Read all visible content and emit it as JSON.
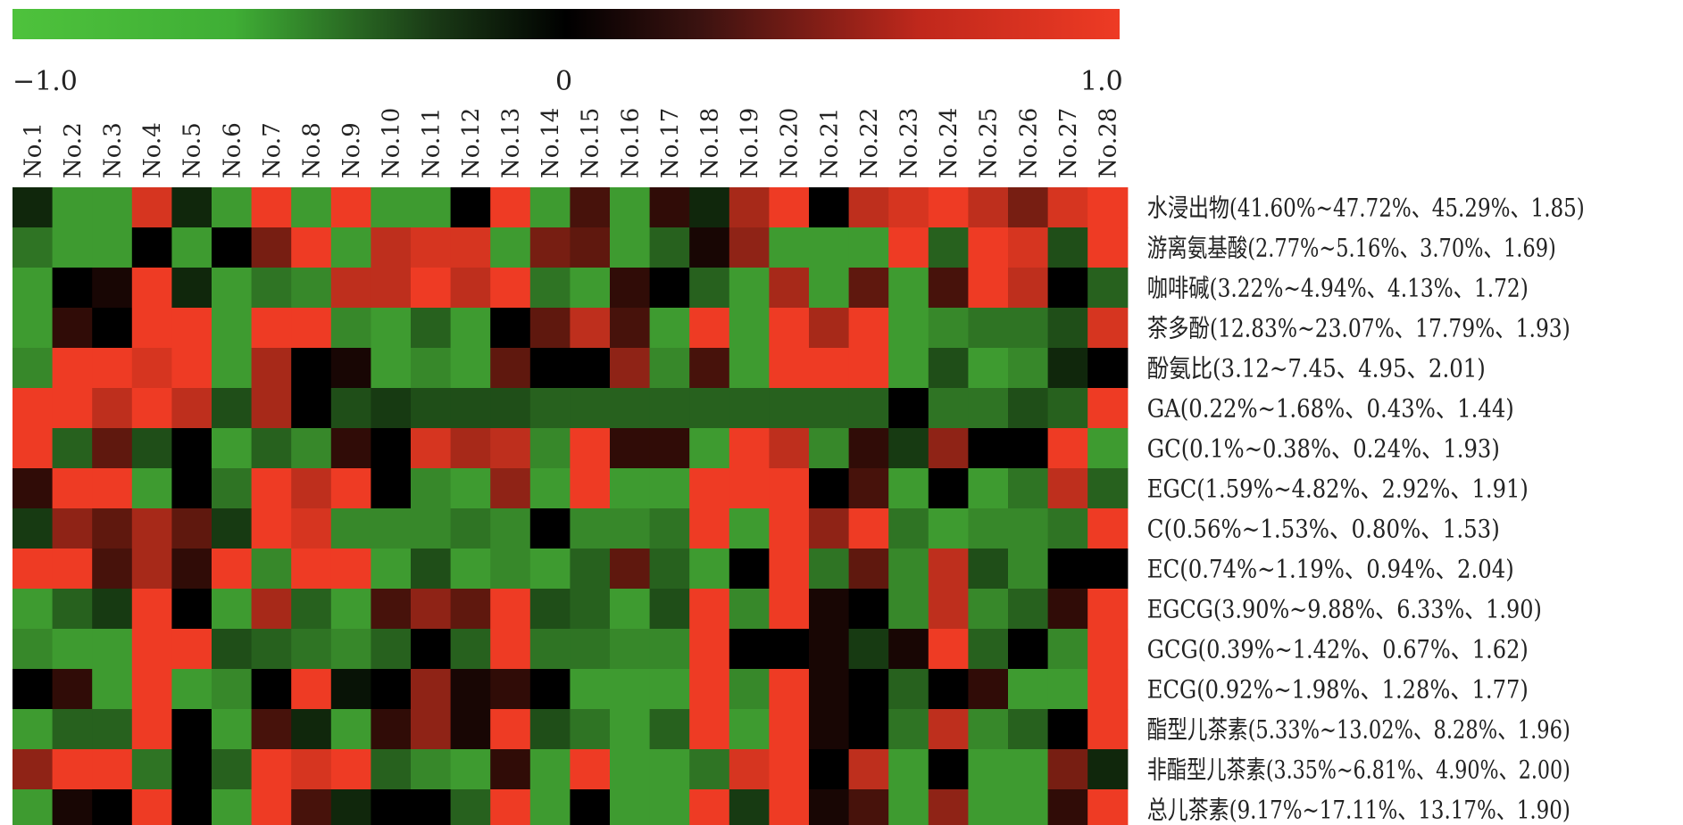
{
  "chart_data": {
    "type": "heatmap",
    "colorbar": {
      "min_label": "−1.0",
      "mid_label": "0",
      "max_label": "1.0",
      "range": [
        -1.0,
        1.0
      ],
      "colors": {
        "low": "#4ec23c",
        "mid": "#000000",
        "high": "#ee3b24"
      }
    },
    "columns": [
      "No.1",
      "No.2",
      "No.3",
      "No.4",
      "No.5",
      "No.6",
      "No.7",
      "No.8",
      "No.9",
      "No.10",
      "No.11",
      "No.12",
      "No.13",
      "No.14",
      "No.15",
      "No.16",
      "No.17",
      "No.18",
      "No.19",
      "No.20",
      "No.21",
      "No.22",
      "No.23",
      "No.24",
      "No.25",
      "No.26",
      "No.27",
      "No.28"
    ],
    "rows": [
      "水浸出物(41.60%~47.72%、45.29%、1.85)",
      "游离氨基酸(2.77%~5.16%、3.70%、1.69)",
      "咖啡碱(3.22%~4.94%、4.13%、1.72)",
      "茶多酚(12.83%~23.07%、17.79%、1.93)",
      "酚氨比(3.12~7.45、4.95、2.01)",
      "GA(0.22%~1.68%、0.43%、1.44)",
      "GC(0.1%~0.38%、0.24%、1.93)",
      "EGC(1.59%~4.82%、2.92%、1.91)",
      "C(0.56%~1.53%、0.80%、1.53)",
      "EC(0.74%~1.19%、0.94%、2.04)",
      "EGCG(3.90%~9.88%、6.33%、1.90)",
      "GCG(0.39%~1.42%、0.67%、1.62)",
      "ECG(0.92%~1.98%、1.28%、1.77)",
      "酯型儿茶素(5.33%~13.02%、8.28%、1.96)",
      "非酯型儿茶素(3.35%~6.81%、4.90%、2.00)",
      "总儿茶素(9.17%~17.11%、13.17%、1.90)"
    ],
    "values": [
      [
        -0.2,
        -0.8,
        -0.8,
        0.9,
        -0.2,
        -0.8,
        1.0,
        -0.8,
        1.0,
        -0.8,
        -0.8,
        0.0,
        1.0,
        -0.8,
        0.3,
        -0.8,
        0.2,
        -0.2,
        0.7,
        1.0,
        0.0,
        0.8,
        0.9,
        1.0,
        0.8,
        0.5,
        0.9,
        1.0
      ],
      [
        -0.6,
        -0.8,
        -0.8,
        0.0,
        -0.8,
        0.0,
        0.5,
        1.0,
        -0.8,
        0.8,
        0.9,
        0.9,
        -0.8,
        0.5,
        0.4,
        -0.8,
        -0.5,
        0.1,
        0.6,
        -0.8,
        -0.8,
        -0.8,
        1.0,
        -0.5,
        1.0,
        0.9,
        -0.4,
        1.0
      ],
      [
        -0.8,
        0.0,
        0.1,
        1.0,
        -0.2,
        -0.8,
        -0.6,
        -0.7,
        0.8,
        0.8,
        1.0,
        0.8,
        1.0,
        -0.6,
        -0.8,
        0.2,
        0.0,
        -0.5,
        -0.8,
        0.7,
        -0.8,
        0.4,
        -0.8,
        0.3,
        1.0,
        0.8,
        0.0,
        -0.5
      ],
      [
        -0.8,
        0.2,
        0.0,
        1.0,
        1.0,
        -0.8,
        1.0,
        1.0,
        -0.7,
        -0.8,
        -0.5,
        -0.8,
        0.0,
        0.4,
        0.8,
        0.3,
        -0.8,
        1.0,
        -0.8,
        1.0,
        0.7,
        1.0,
        -0.8,
        -0.7,
        -0.6,
        -0.6,
        -0.4,
        0.9
      ],
      [
        -0.7,
        1.0,
        1.0,
        0.9,
        1.0,
        -0.8,
        0.7,
        0.0,
        0.1,
        -0.8,
        -0.7,
        -0.8,
        0.4,
        0.0,
        0.0,
        0.6,
        -0.7,
        0.3,
        -0.8,
        1.0,
        1.0,
        1.0,
        -0.8,
        -0.4,
        -0.8,
        -0.7,
        -0.2,
        0.0
      ],
      [
        1.0,
        1.0,
        0.8,
        1.0,
        0.8,
        -0.4,
        0.7,
        0.0,
        -0.4,
        -0.3,
        -0.4,
        -0.4,
        -0.4,
        -0.5,
        -0.5,
        -0.5,
        -0.5,
        -0.5,
        -0.5,
        -0.5,
        -0.5,
        -0.5,
        0.0,
        -0.6,
        -0.6,
        -0.4,
        -0.5,
        1.0
      ],
      [
        1.0,
        -0.5,
        0.4,
        -0.4,
        0.0,
        -0.8,
        -0.5,
        -0.7,
        0.2,
        0.0,
        0.9,
        0.7,
        0.8,
        -0.7,
        1.0,
        0.2,
        0.2,
        -0.8,
        1.0,
        0.8,
        -0.7,
        0.2,
        -0.3,
        0.6,
        0.0,
        0.0,
        1.0,
        -0.8
      ],
      [
        0.2,
        1.0,
        1.0,
        -0.8,
        0.0,
        -0.6,
        1.0,
        0.8,
        1.0,
        0.0,
        -0.7,
        -0.8,
        0.6,
        -0.8,
        1.0,
        -0.8,
        -0.8,
        1.0,
        1.0,
        1.0,
        0.0,
        0.3,
        -0.8,
        0.0,
        -0.8,
        -0.6,
        0.8,
        -0.5
      ],
      [
        -0.3,
        0.6,
        0.4,
        0.7,
        0.4,
        -0.3,
        1.0,
        0.9,
        -0.7,
        -0.7,
        -0.7,
        -0.6,
        -0.7,
        0.0,
        -0.7,
        -0.7,
        -0.6,
        1.0,
        -0.8,
        1.0,
        0.6,
        1.0,
        -0.6,
        -0.8,
        -0.7,
        -0.7,
        -0.6,
        1.0
      ],
      [
        1.0,
        1.0,
        0.3,
        0.7,
        0.2,
        1.0,
        -0.7,
        1.0,
        1.0,
        -0.8,
        -0.4,
        -0.8,
        -0.7,
        -0.8,
        -0.5,
        0.4,
        -0.5,
        -0.8,
        0.0,
        1.0,
        -0.6,
        0.4,
        -0.7,
        0.8,
        -0.4,
        -0.7,
        0.0,
        0.0
      ],
      [
        -0.8,
        -0.5,
        -0.3,
        1.0,
        0.0,
        -0.8,
        0.7,
        -0.5,
        -0.8,
        0.3,
        0.6,
        0.4,
        1.0,
        -0.4,
        -0.5,
        -0.8,
        -0.4,
        1.0,
        -0.7,
        1.0,
        0.1,
        0.0,
        -0.7,
        0.8,
        -0.7,
        -0.5,
        0.2,
        1.0
      ],
      [
        -0.7,
        -0.8,
        -0.8,
        1.0,
        1.0,
        -0.4,
        -0.5,
        -0.6,
        -0.7,
        -0.5,
        0.0,
        -0.5,
        1.0,
        -0.6,
        -0.6,
        -0.7,
        -0.7,
        1.0,
        0.0,
        0.0,
        0.1,
        -0.3,
        0.1,
        1.0,
        -0.5,
        0.0,
        -0.7,
        1.0
      ],
      [
        0.0,
        0.2,
        -0.8,
        1.0,
        -0.8,
        -0.7,
        0.0,
        1.0,
        -0.1,
        0.0,
        0.6,
        0.1,
        0.2,
        0.0,
        -0.8,
        -0.8,
        -0.8,
        1.0,
        -0.7,
        1.0,
        0.1,
        0.0,
        -0.5,
        0.0,
        0.2,
        -0.8,
        -0.8,
        1.0
      ],
      [
        -0.8,
        -0.5,
        -0.5,
        1.0,
        0.0,
        -0.8,
        0.3,
        -0.2,
        -0.8,
        0.2,
        0.6,
        0.1,
        1.0,
        -0.4,
        -0.6,
        -0.8,
        -0.5,
        1.0,
        -0.8,
        1.0,
        0.1,
        0.0,
        -0.6,
        0.8,
        -0.7,
        -0.5,
        0.0,
        1.0
      ],
      [
        0.6,
        1.0,
        1.0,
        -0.6,
        0.0,
        -0.5,
        1.0,
        0.9,
        1.0,
        -0.5,
        -0.7,
        -0.8,
        0.2,
        -0.8,
        1.0,
        -0.8,
        -0.8,
        -0.6,
        0.9,
        1.0,
        0.0,
        0.8,
        -0.8,
        0.0,
        -0.8,
        -0.8,
        0.5,
        -0.2
      ],
      [
        -0.8,
        0.1,
        0.0,
        1.0,
        0.0,
        -0.8,
        1.0,
        0.3,
        -0.2,
        0.0,
        0.0,
        -0.5,
        1.0,
        -0.8,
        0.0,
        -0.8,
        -0.8,
        1.0,
        -0.3,
        1.0,
        0.1,
        0.3,
        -0.8,
        0.6,
        -0.8,
        -0.8,
        0.2,
        1.0
      ]
    ]
  }
}
